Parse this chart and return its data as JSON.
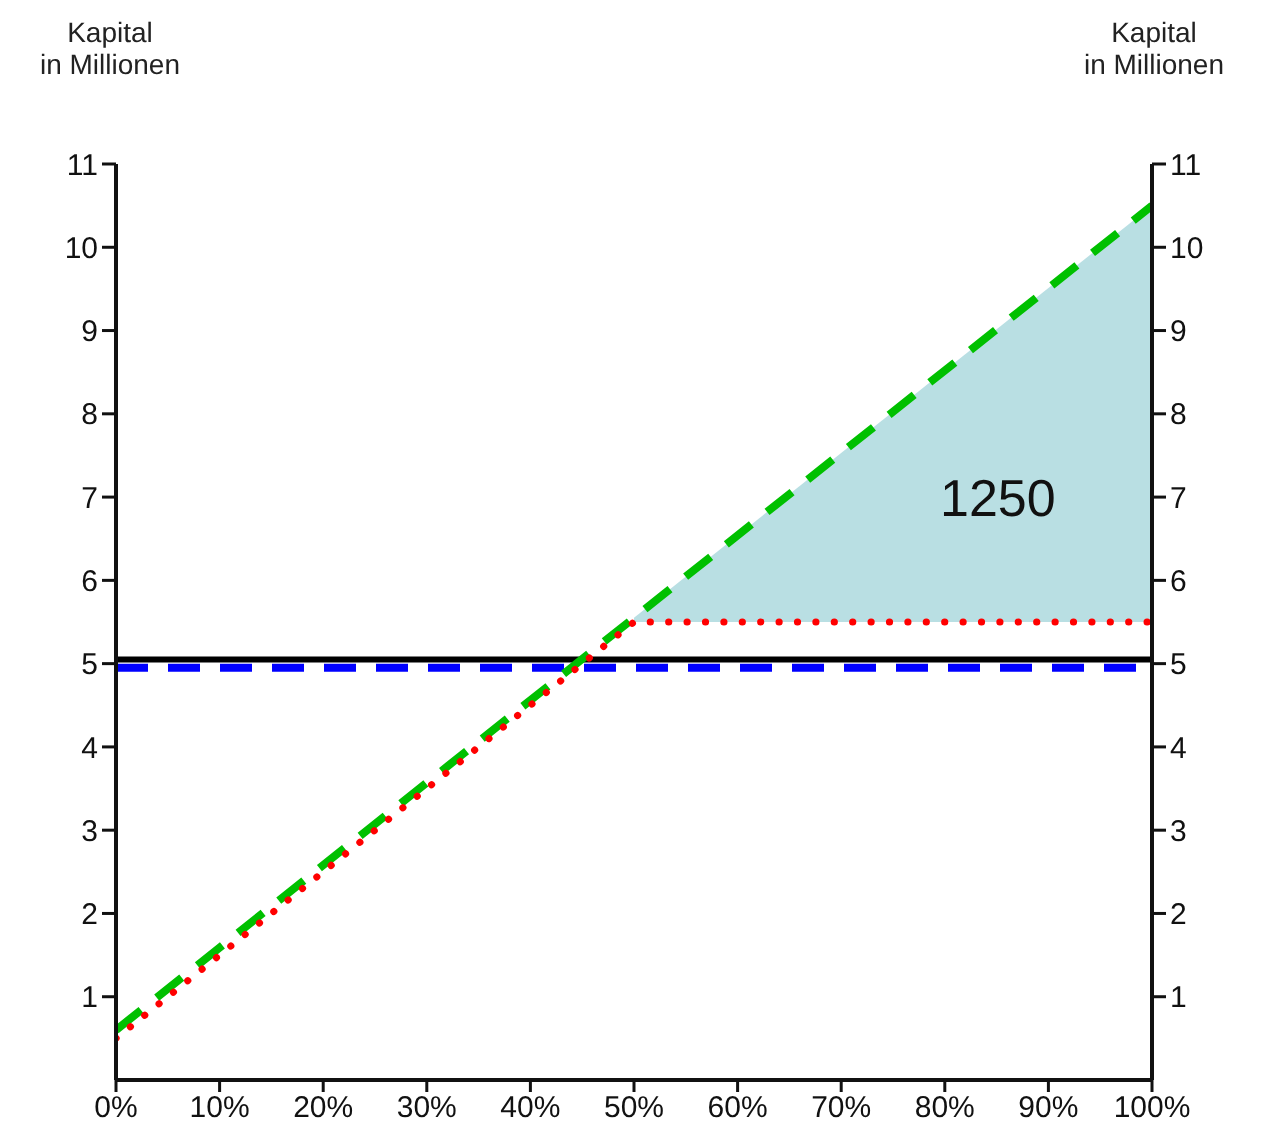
{
  "chart_data": {
    "type": "line",
    "ylabel": "Kapital\nin Millionen",
    "y2label": "Kapital\nin Millionen",
    "xlim": [
      0,
      100
    ],
    "xticks": [
      {
        "value": 0,
        "label": "0%"
      },
      {
        "value": 10,
        "label": "10%"
      },
      {
        "value": 20,
        "label": "20%"
      },
      {
        "value": 30,
        "label": "30%"
      },
      {
        "value": 40,
        "label": "40%"
      },
      {
        "value": 50,
        "label": "50%"
      },
      {
        "value": 60,
        "label": "60%"
      },
      {
        "value": 70,
        "label": "70%"
      },
      {
        "value": 80,
        "label": "80%"
      },
      {
        "value": 90,
        "label": "90%"
      },
      {
        "value": 100,
        "label": "100%"
      }
    ],
    "ylim": [
      0,
      11
    ],
    "yticks": [
      1,
      2,
      3,
      4,
      5,
      6,
      7,
      8,
      9,
      10,
      11
    ],
    "y2lim": [
      0,
      11
    ],
    "y2ticks": [
      1,
      2,
      3,
      4,
      5,
      6,
      7,
      8,
      9,
      10,
      11
    ],
    "marker": "none",
    "series": [
      {
        "color": "#000000",
        "line_style": "solid",
        "x": [
          0,
          100
        ],
        "values": [
          5.05,
          5.05
        ]
      },
      {
        "color": "#0000ff",
        "line_style": "dashed",
        "x": [
          0,
          100
        ],
        "values": [
          4.95,
          4.95
        ]
      },
      {
        "color": "#00c000",
        "line_style": "dashed",
        "x": [
          0,
          100
        ],
        "values": [
          0.6,
          10.5
        ]
      },
      {
        "color": "#ff0000",
        "line_style": "dotted",
        "x": [
          0,
          50,
          100
        ],
        "values": [
          0.5,
          5.5,
          5.5
        ],
        "lower": [
          null,
          5.5,
          5.5
        ],
        "upper": [
          null,
          5.55,
          10.5
        ]
      }
    ],
    "annotations": [
      "1250"
    ]
  }
}
